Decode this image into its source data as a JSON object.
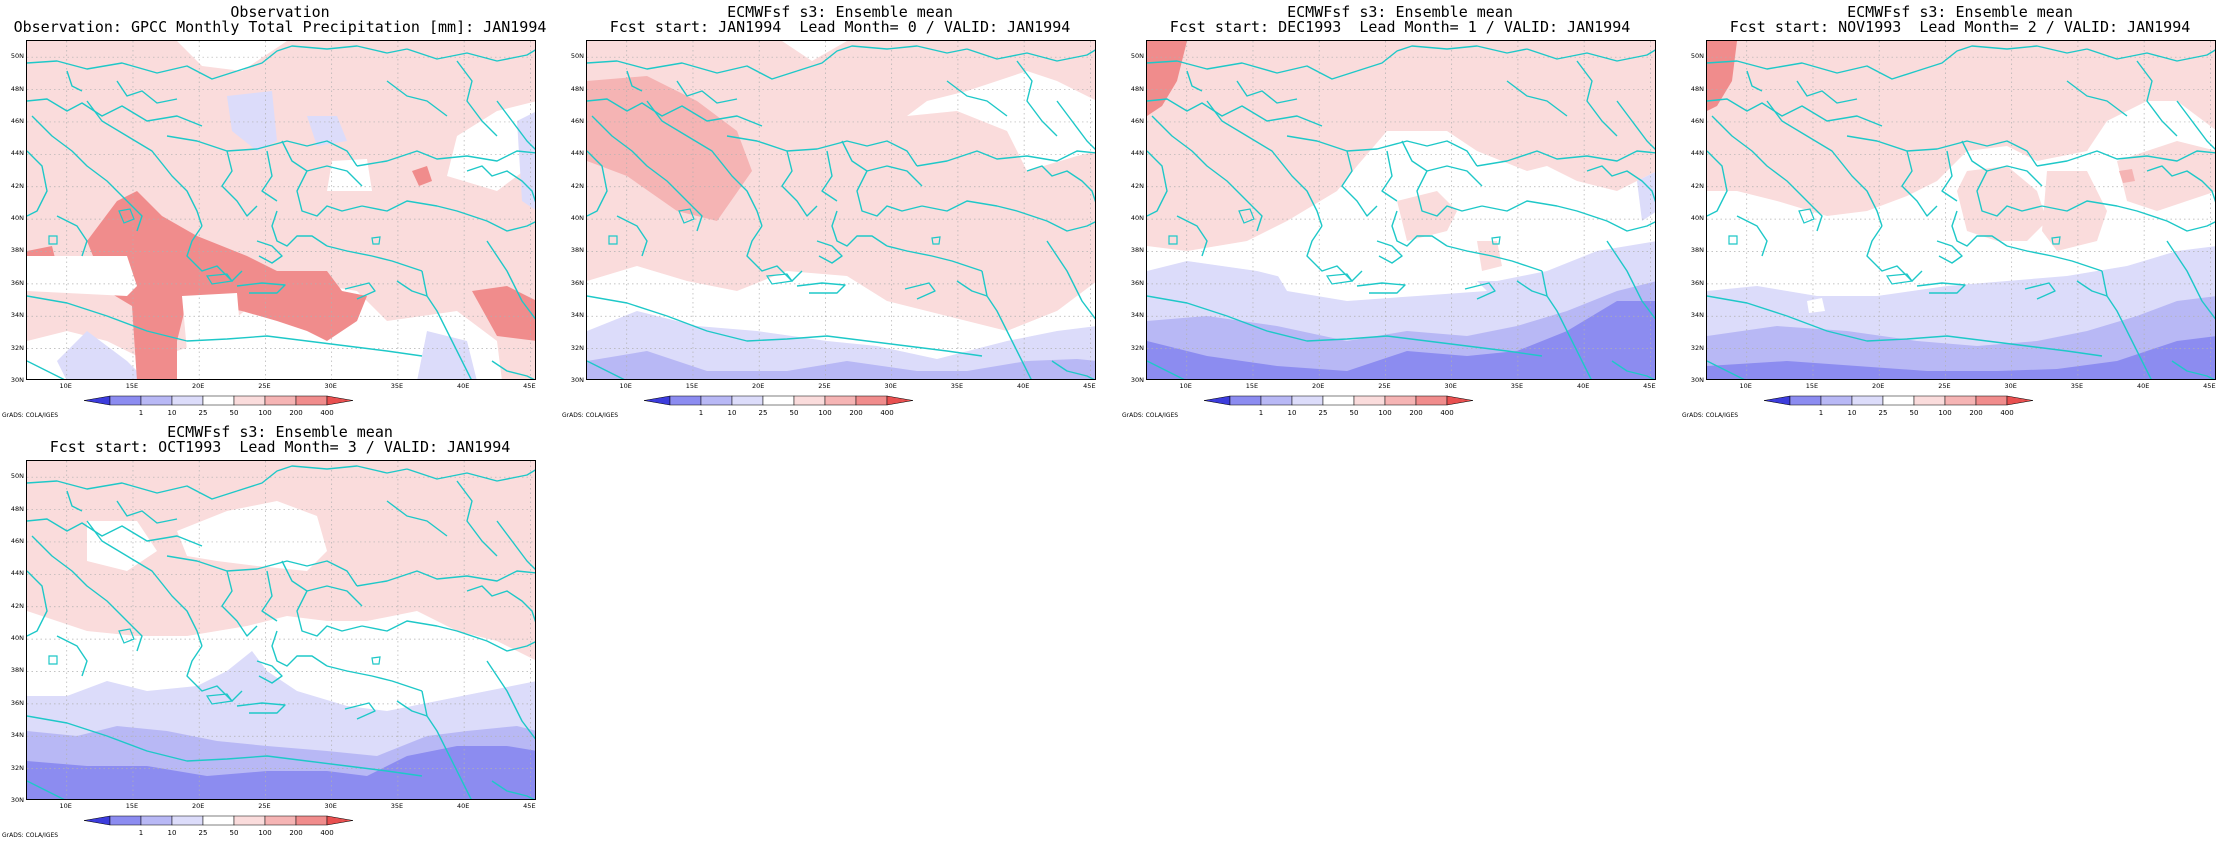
{
  "panels": [
    {
      "title": "Observation",
      "subtitle": "Observation: GPCC Monthly Total Precipitation [mm]: JAN1994",
      "pattern": "obs"
    },
    {
      "title": "ECMWFsf s3: Ensemble mean",
      "subtitle": "Fcst start: JAN1994  Lead Month= 0 / VALID: JAN1994",
      "pattern": "lead0"
    },
    {
      "title": "ECMWFsf s3: Ensemble mean",
      "subtitle": "Fcst start: DEC1993  Lead Month= 1 / VALID: JAN1994",
      "pattern": "lead1"
    },
    {
      "title": "ECMWFsf s3: Ensemble mean",
      "subtitle": "Fcst start: NOV1993  Lead Month= 2 / VALID: JAN1994",
      "pattern": "lead2"
    },
    {
      "title": "ECMWFsf s3: Ensemble mean",
      "subtitle": "Fcst start: OCT1993  Lead Month= 3 / VALID: JAN1994",
      "pattern": "lead3"
    }
  ],
  "axes": {
    "lon_labels": [
      "10E",
      "15E",
      "20E",
      "25E",
      "30E",
      "35E",
      "40E",
      "45E"
    ],
    "lat_labels": [
      "50N",
      "48N",
      "46N",
      "44N",
      "42N",
      "40N",
      "38N",
      "36N",
      "34N",
      "32N",
      "30N"
    ],
    "lon_range": [
      7,
      45.5
    ],
    "lat_range": [
      30,
      51
    ]
  },
  "colorbar": {
    "labels": [
      "1",
      "10",
      "25",
      "50",
      "100",
      "200",
      "400"
    ],
    "colors": [
      "#3c3cdc",
      "#8c8cf0",
      "#b8b8f5",
      "#dcdcfa",
      "#ffffff",
      "#fadcdc",
      "#f5b4b4",
      "#f08c8c",
      "#e85050"
    ]
  },
  "credit": "GrADS: COLA/IGES",
  "colors": {
    "coast": "#1ec8c8",
    "pink_light": "#fadcdc",
    "pink_mid": "#f5b4b4",
    "pink_strong": "#f08c8c",
    "blue_light": "#dcdcfa",
    "blue_mid": "#b8b8f5",
    "blue_strong": "#8c8cf0"
  }
}
